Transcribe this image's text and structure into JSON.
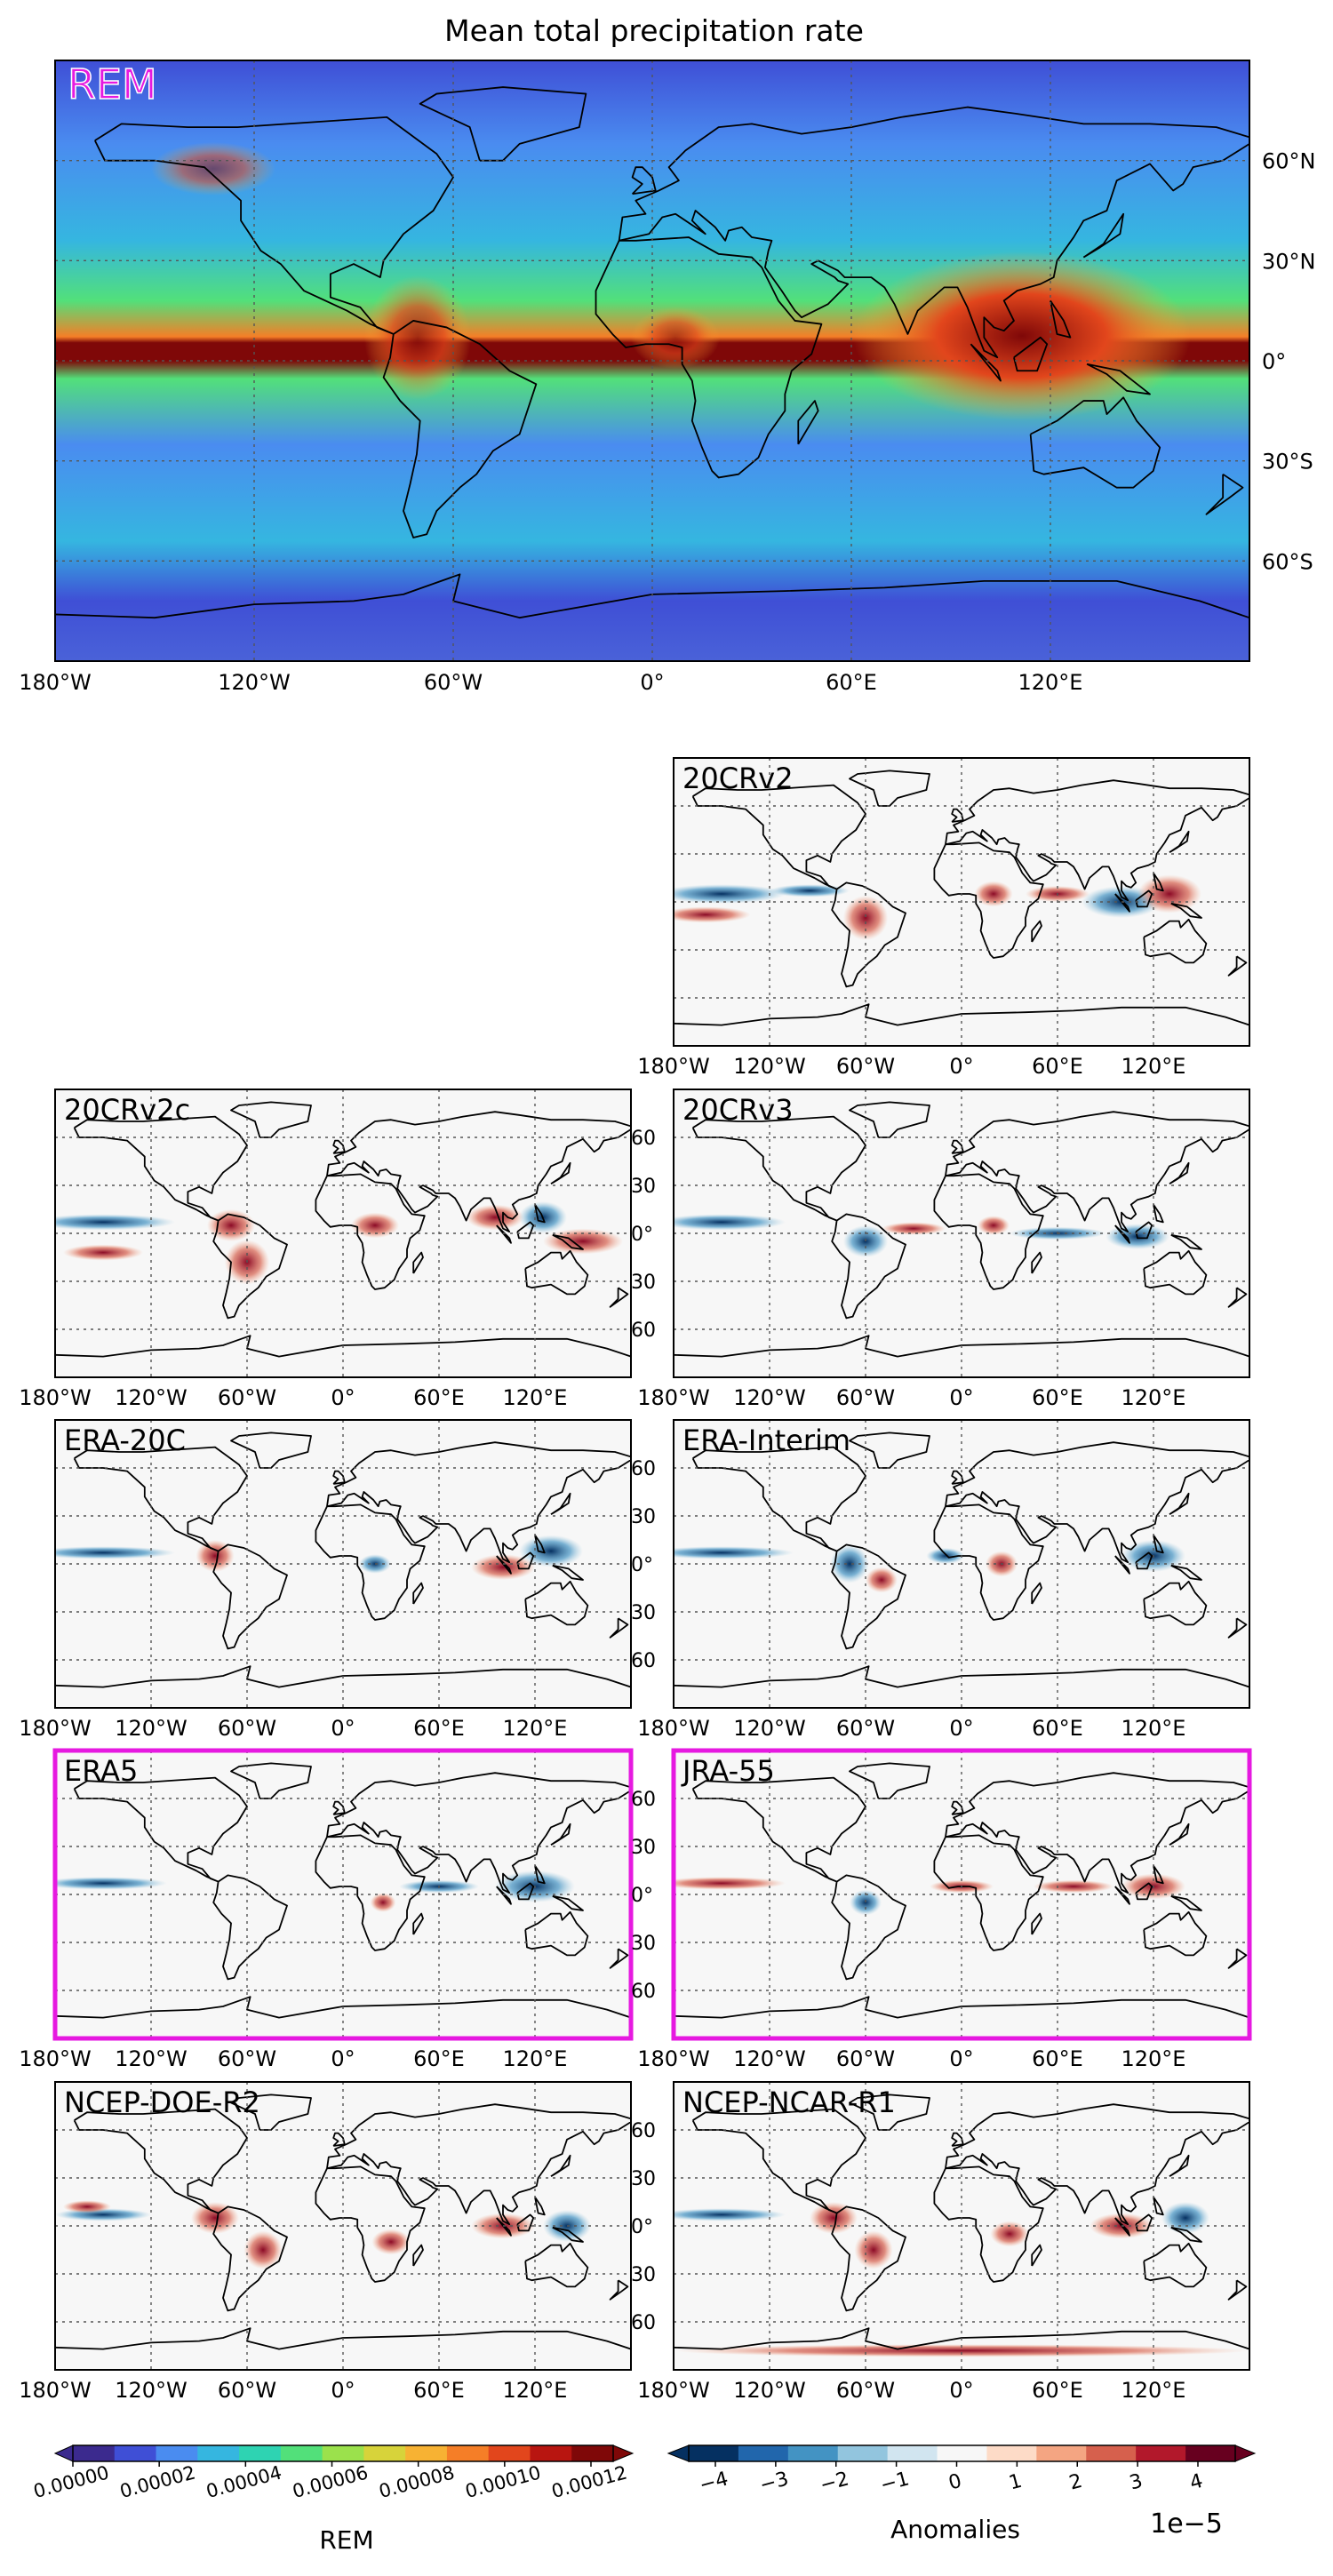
{
  "main_title": "Mean total precipitation rate",
  "rem_panel": {
    "label": "REM",
    "lon_ticks": [
      "180°W",
      "120°W",
      "60°W",
      "0°",
      "60°E",
      "120°E"
    ],
    "lat_ticks": [
      "60°N",
      "30°N",
      "0°",
      "30°S",
      "60°S"
    ]
  },
  "anomaly_panels": [
    {
      "label": "20CRv2",
      "highlighted": false,
      "lat_tick_labels": false
    },
    {
      "label": "20CRv2c",
      "highlighted": false,
      "lat_tick_labels": false
    },
    {
      "label": "20CRv3",
      "highlighted": false,
      "lat_tick_labels": true
    },
    {
      "label": "ERA-20C",
      "highlighted": false,
      "lat_tick_labels": false
    },
    {
      "label": "ERA-Interim",
      "highlighted": false,
      "lat_tick_labels": true
    },
    {
      "label": "ERA5",
      "highlighted": true,
      "lat_tick_labels": false
    },
    {
      "label": "JRA-55",
      "highlighted": true,
      "lat_tick_labels": true
    },
    {
      "label": "NCEP-DOE-R2",
      "highlighted": false,
      "lat_tick_labels": false
    },
    {
      "label": "NCEP-NCAR-R1",
      "highlighted": false,
      "lat_tick_labels": true
    }
  ],
  "small_lon_ticks": [
    "180°W",
    "120°W",
    "60°W",
    "0°",
    "60°E",
    "120°E"
  ],
  "small_lat_ticks": [
    "60",
    "30",
    "0°",
    "30",
    "60"
  ],
  "colorbar_rem": {
    "title": "REM",
    "ticks": [
      "0.00000",
      "0.00002",
      "0.00004",
      "0.00006",
      "0.00008",
      "0.00010",
      "0.00012"
    ],
    "colors": [
      "#3b2a8e",
      "#3f4fd6",
      "#4a8cf0",
      "#35b6e0",
      "#2ed3b2",
      "#52e07a",
      "#9be14c",
      "#d7d33a",
      "#f7b233",
      "#f57e27",
      "#e2461c",
      "#b81510",
      "#7f0808"
    ]
  },
  "colorbar_anom": {
    "title": "Anomalies",
    "scale": "1e−5",
    "ticks": [
      "−4",
      "−3",
      "−2",
      "−1",
      "0",
      "1",
      "2",
      "3",
      "4"
    ],
    "colors": [
      "#053061",
      "#2166ac",
      "#4393c3",
      "#92c5de",
      "#d1e5f0",
      "#f7f7f7",
      "#fddbc7",
      "#f4a582",
      "#d6604d",
      "#b2182b",
      "#67001f"
    ]
  },
  "colors": {
    "highlight": "#e619e0",
    "rem_label": "#e619e0"
  }
}
